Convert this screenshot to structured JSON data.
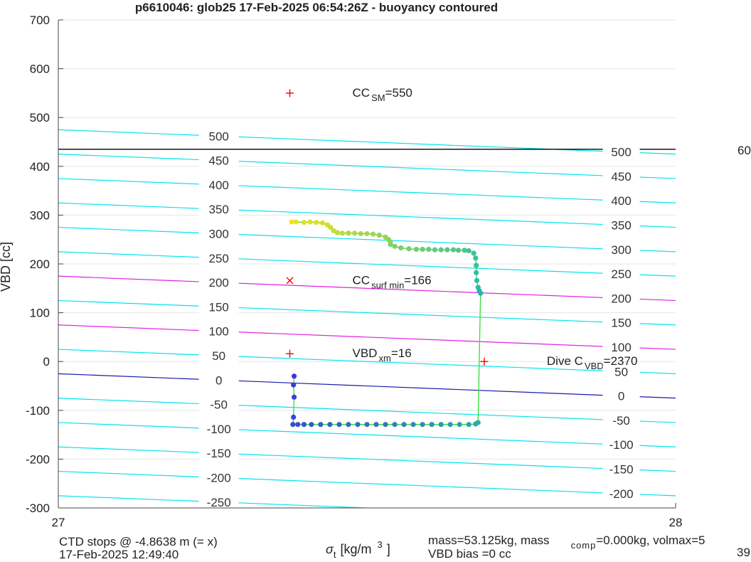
{
  "chart_data": {
    "type": "scatter",
    "title": "p6610046: glob25 17-Feb-2025 06:54:26Z - buoyancy contoured",
    "ylabel": "VBD [cc]",
    "xlabel_symbol": "σ",
    "xlabel_sub": "t",
    "xlabel_unit": "[kg/m",
    "xlabel_sup": "3",
    "xlabel_close": "]",
    "xlim": [
      27,
      28
    ],
    "ylim": [
      -300,
      700
    ],
    "xticks": [
      "27",
      "28"
    ],
    "yticks": [
      -300,
      -200,
      -100,
      0,
      100,
      200,
      300,
      400,
      500,
      600,
      700
    ],
    "grid": true,
    "contour_levels": [
      -250,
      -200,
      -150,
      -100,
      -50,
      0,
      50,
      100,
      150,
      200,
      250,
      300,
      350,
      400,
      450,
      500
    ],
    "contour_left_labels": [
      "-250",
      "-200",
      "-150",
      "-100",
      "-50",
      "0",
      "50",
      "100",
      "150",
      "200",
      "250",
      "300",
      "350",
      "400",
      "450",
      "500"
    ],
    "contour_right_labels": [
      "-200",
      "-150",
      "-100",
      "-50",
      "0",
      "50",
      "100",
      "150",
      "200",
      "250",
      "300",
      "350",
      "400",
      "450",
      "500"
    ],
    "highlight_levels": [
      100,
      200
    ],
    "highlight_color": "#e020e0",
    "contour_color": "#00e5ee",
    "zero_line_color": "#1a1aaa",
    "max_line": {
      "y": 435,
      "color": "#000000"
    },
    "max_line_label": "60",
    "markers": [
      {
        "x": 27.375,
        "y": 550,
        "symbol": "+",
        "color": "#ff0000",
        "label_main": "CC",
        "label_sub": "SM",
        "label_rest": "=550"
      },
      {
        "x": 27.375,
        "y": 166,
        "symbol": "x",
        "color": "#ff0000",
        "label_main": "CC",
        "label_sub": "surf min",
        "label_rest": "=166"
      },
      {
        "x": 27.375,
        "y": 16,
        "symbol": "+",
        "color": "#ff0000",
        "label_main": "VBD",
        "label_sub": "xm",
        "label_rest": "=16"
      },
      {
        "x": 27.69,
        "y": 0,
        "symbol": "+",
        "color": "#ff0000",
        "label_main": "Dive C",
        "label_sub": "VBD",
        "label_rest": "=2370"
      }
    ],
    "series": [
      {
        "points": [
          [
            27.378,
            286
          ],
          [
            27.385,
            286
          ],
          [
            27.398,
            285
          ],
          [
            27.408,
            286
          ],
          [
            27.418,
            285
          ],
          [
            27.428,
            284
          ],
          [
            27.436,
            280
          ],
          [
            27.441,
            275
          ],
          [
            27.446,
            268
          ],
          [
            27.452,
            264
          ],
          [
            27.46,
            263
          ],
          [
            27.47,
            263
          ],
          [
            27.48,
            263
          ],
          [
            27.49,
            262
          ],
          [
            27.5,
            262
          ],
          [
            27.51,
            261
          ],
          [
            27.52,
            259
          ],
          [
            27.53,
            255
          ],
          [
            27.535,
            250
          ],
          [
            27.538,
            245
          ],
          [
            27.538,
            240
          ],
          [
            27.545,
            236
          ],
          [
            27.555,
            233
          ],
          [
            27.568,
            231
          ],
          [
            27.58,
            230
          ],
          [
            27.59,
            230
          ],
          [
            27.6,
            230
          ],
          [
            27.61,
            229
          ],
          [
            27.62,
            229
          ],
          [
            27.63,
            229
          ],
          [
            27.64,
            229
          ],
          [
            27.648,
            228
          ],
          [
            27.658,
            228
          ],
          [
            27.665,
            227
          ],
          [
            27.673,
            222
          ],
          [
            27.676,
            212
          ],
          [
            27.677,
            197
          ],
          [
            27.677,
            182
          ],
          [
            27.678,
            166
          ],
          [
            27.68,
            152
          ],
          [
            27.682,
            145
          ],
          [
            27.684,
            140
          ],
          [
            27.68,
            -125
          ],
          [
            27.676,
            -128
          ],
          [
            27.665,
            -129
          ],
          [
            27.65,
            -129
          ],
          [
            27.635,
            -129
          ],
          [
            27.62,
            -129
          ],
          [
            27.605,
            -129
          ],
          [
            27.59,
            -129
          ],
          [
            27.575,
            -129
          ],
          [
            27.56,
            -129
          ],
          [
            27.545,
            -129
          ],
          [
            27.53,
            -129
          ],
          [
            27.515,
            -129
          ],
          [
            27.5,
            -129
          ],
          [
            27.485,
            -129
          ],
          [
            27.47,
            -129
          ],
          [
            27.455,
            -129
          ],
          [
            27.44,
            -129
          ],
          [
            27.425,
            -129
          ],
          [
            27.41,
            -129
          ],
          [
            27.398,
            -129
          ],
          [
            27.388,
            -129
          ],
          [
            27.38,
            -129
          ],
          [
            27.381,
            -114
          ],
          [
            27.382,
            -73
          ],
          [
            27.381,
            -48
          ],
          [
            27.382,
            -30
          ]
        ],
        "color_top": "#f2e21a",
        "color_mid": "#2cc0a4",
        "color_bottom": "#3a3ad6",
        "line_color": "#33dd33"
      }
    ]
  },
  "footer": {
    "ctd_line1": "CTD stops @ -4.8638 m (= x)",
    "ctd_line2": "17-Feb-2025 12:49:40",
    "mass_line1": "mass=53.125kg, mass",
    "mass_sub": "comp",
    "mass_rest": "=0.000kg, volmax=5",
    "mass_line2": "VBD bias =0 cc",
    "edge_number": "39"
  }
}
